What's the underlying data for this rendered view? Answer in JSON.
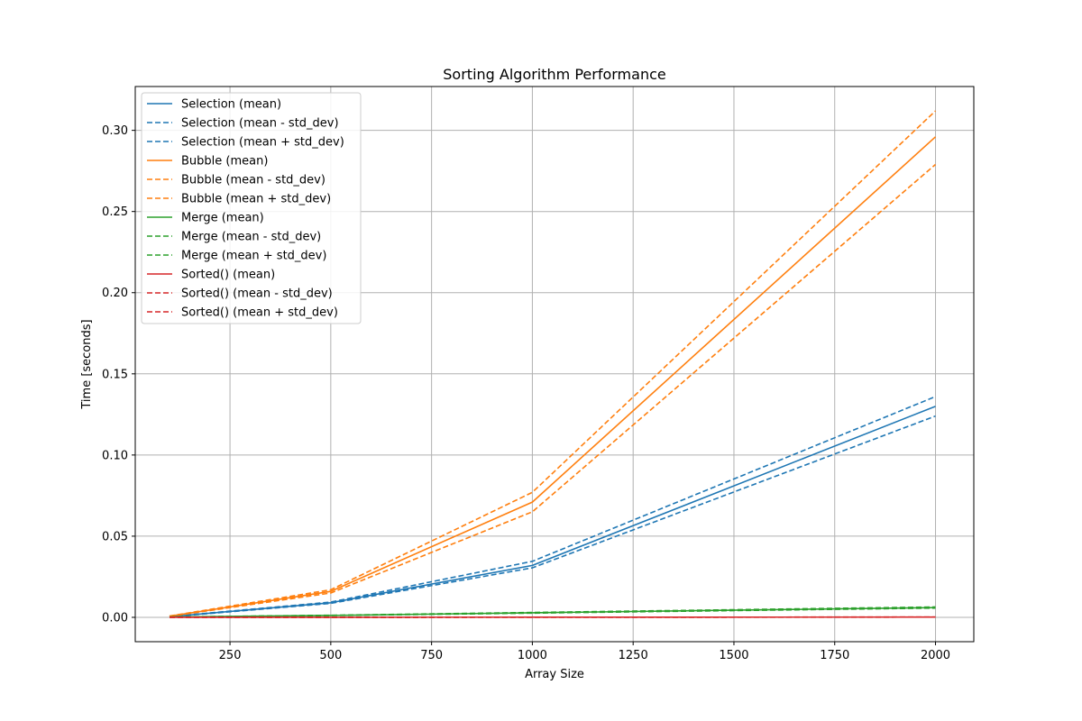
{
  "chart_data": {
    "type": "line",
    "title": "Sorting Algorithm Performance",
    "xlabel": "Array Size",
    "ylabel": "Time [seconds]",
    "xlim": [
      15,
      2095
    ],
    "ylim": [
      -0.015,
      0.327
    ],
    "xticks": [
      250,
      500,
      750,
      1000,
      1250,
      1500,
      1750,
      2000
    ],
    "yticks": [
      0.0,
      0.05,
      0.1,
      0.15,
      0.2,
      0.25,
      0.3
    ],
    "xtick_labels": [
      "250",
      "500",
      "750",
      "1000",
      "1250",
      "1500",
      "1750",
      "2000"
    ],
    "ytick_labels": [
      "0.00",
      "0.05",
      "0.10",
      "0.15",
      "0.20",
      "0.25",
      "0.30"
    ],
    "grid": true,
    "legend_position": "top-left",
    "x": [
      100,
      500,
      1000,
      2000
    ],
    "series": [
      {
        "name": "Selection (mean)",
        "color": "#1f77b4",
        "style": "solid",
        "values": [
          0.0004,
          0.009,
          0.032,
          0.13
        ]
      },
      {
        "name": "Selection (mean - std_dev)",
        "color": "#1f77b4",
        "style": "dashed",
        "values": [
          0.0003,
          0.0086,
          0.0305,
          0.124
        ]
      },
      {
        "name": "Selection (mean + std_dev)",
        "color": "#1f77b4",
        "style": "dashed",
        "values": [
          0.0005,
          0.0094,
          0.0345,
          0.136
        ]
      },
      {
        "name": "Bubble (mean)",
        "color": "#ff7f0e",
        "style": "solid",
        "values": [
          0.0007,
          0.016,
          0.071,
          0.296
        ]
      },
      {
        "name": "Bubble (mean - std_dev)",
        "color": "#ff7f0e",
        "style": "dashed",
        "values": [
          0.0006,
          0.015,
          0.065,
          0.279
        ]
      },
      {
        "name": "Bubble (mean + std_dev)",
        "color": "#ff7f0e",
        "style": "dashed",
        "values": [
          0.0008,
          0.017,
          0.077,
          0.312
        ]
      },
      {
        "name": "Merge (mean)",
        "color": "#2ca02c",
        "style": "solid",
        "values": [
          0.0002,
          0.0012,
          0.0028,
          0.006
        ]
      },
      {
        "name": "Merge (mean - std_dev)",
        "color": "#2ca02c",
        "style": "dashed",
        "values": [
          0.0002,
          0.0011,
          0.0026,
          0.0057
        ]
      },
      {
        "name": "Merge (mean + std_dev)",
        "color": "#2ca02c",
        "style": "dashed",
        "values": [
          0.0002,
          0.0013,
          0.003,
          0.0064
        ]
      },
      {
        "name": "Sorted() (mean)",
        "color": "#d62728",
        "style": "solid",
        "values": [
          1e-05,
          3e-05,
          7e-05,
          0.00015
        ]
      },
      {
        "name": "Sorted() (mean - std_dev)",
        "color": "#d62728",
        "style": "dashed",
        "values": [
          1e-05,
          3e-05,
          6e-05,
          0.00013
        ]
      },
      {
        "name": "Sorted() (mean + std_dev)",
        "color": "#d62728",
        "style": "dashed",
        "values": [
          1e-05,
          3e-05,
          8e-05,
          0.00017
        ]
      }
    ]
  }
}
